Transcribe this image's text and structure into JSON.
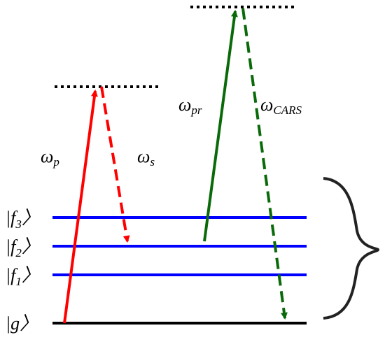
{
  "levels": [
    {
      "prefix": "|f",
      "sub": "3",
      "suffix": "〉"
    },
    {
      "prefix": "|f",
      "sub": "2",
      "suffix": "〉"
    },
    {
      "prefix": "|f",
      "sub": "1",
      "suffix": "〉"
    },
    {
      "prefix": "|g",
      "sub": "",
      "suffix": "〉"
    }
  ],
  "beams": [
    {
      "symbol": "ω",
      "sub": "p"
    },
    {
      "symbol": "ω",
      "sub": "s"
    },
    {
      "symbol": "ω",
      "sub": "pr"
    },
    {
      "symbol": "ω",
      "sub": "CARS"
    }
  ]
}
